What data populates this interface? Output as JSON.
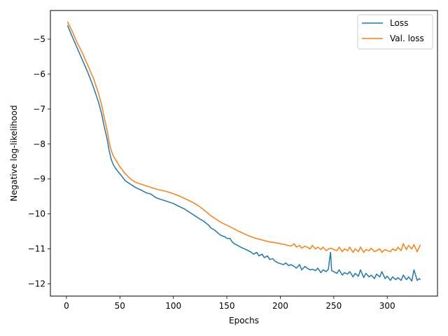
{
  "chart_data": {
    "type": "line",
    "title": "",
    "xlabel": "Epochs",
    "ylabel": "Negative log-likelihood",
    "xlim": [
      -15,
      347
    ],
    "ylim": [
      -12.35,
      -4.18
    ],
    "xticks": [
      0,
      50,
      100,
      150,
      200,
      250,
      300
    ],
    "yticks": [
      -12,
      -11,
      -10,
      -9,
      -8,
      -7,
      -6,
      -5
    ],
    "grid": false,
    "legend_position": "top-right",
    "series": [
      {
        "name": "Loss",
        "color": "#1f77b4",
        "x": [
          1,
          5,
          10,
          15,
          20,
          25,
          30,
          33,
          35,
          38,
          40,
          42,
          44,
          46,
          48,
          50,
          55,
          60,
          65,
          70,
          75,
          78,
          80,
          82,
          85,
          90,
          95,
          100,
          105,
          110,
          115,
          120,
          125,
          128,
          130,
          133,
          135,
          138,
          140,
          143,
          145,
          148,
          150,
          153,
          155,
          157,
          160,
          163,
          165,
          168,
          170,
          173,
          175,
          178,
          180,
          183,
          185,
          188,
          190,
          193,
          195,
          198,
          200,
          203,
          205,
          208,
          210,
          213,
          215,
          218,
          220,
          223,
          225,
          228,
          230,
          233,
          235,
          238,
          240,
          243,
          245,
          246,
          247,
          248,
          250,
          253,
          255,
          258,
          260,
          263,
          265,
          268,
          270,
          273,
          275,
          278,
          280,
          283,
          285,
          288,
          290,
          293,
          295,
          298,
          300,
          303,
          305,
          308,
          310,
          313,
          315,
          318,
          320,
          323,
          325,
          328,
          330,
          331
        ],
        "y": [
          -4.6,
          -4.9,
          -5.25,
          -5.6,
          -5.95,
          -6.35,
          -6.8,
          -7.15,
          -7.45,
          -7.85,
          -8.2,
          -8.45,
          -8.6,
          -8.7,
          -8.78,
          -8.85,
          -9.05,
          -9.15,
          -9.25,
          -9.32,
          -9.4,
          -9.42,
          -9.45,
          -9.5,
          -9.55,
          -9.6,
          -9.65,
          -9.7,
          -9.78,
          -9.85,
          -9.95,
          -10.05,
          -10.15,
          -10.2,
          -10.25,
          -10.32,
          -10.4,
          -10.45,
          -10.5,
          -10.58,
          -10.62,
          -10.65,
          -10.7,
          -10.7,
          -10.8,
          -10.85,
          -10.9,
          -10.95,
          -10.98,
          -11.02,
          -11.05,
          -11.1,
          -11.15,
          -11.1,
          -11.2,
          -11.15,
          -11.25,
          -11.2,
          -11.3,
          -11.28,
          -11.35,
          -11.4,
          -11.42,
          -11.45,
          -11.4,
          -11.48,
          -11.45,
          -11.5,
          -11.55,
          -11.45,
          -11.6,
          -11.5,
          -11.55,
          -11.6,
          -11.58,
          -11.62,
          -11.55,
          -11.68,
          -11.6,
          -11.65,
          -11.58,
          -11.3,
          -11.1,
          -11.62,
          -11.65,
          -11.7,
          -11.6,
          -11.75,
          -11.68,
          -11.72,
          -11.65,
          -11.8,
          -11.7,
          -11.78,
          -11.6,
          -11.82,
          -11.7,
          -11.8,
          -11.75,
          -11.85,
          -11.72,
          -11.8,
          -11.65,
          -11.85,
          -11.78,
          -11.9,
          -11.8,
          -11.88,
          -11.82,
          -11.9,
          -11.75,
          -11.88,
          -11.8,
          -11.92,
          -11.6,
          -11.9,
          -11.85,
          -11.88
        ]
      },
      {
        "name": "Val. loss",
        "color": "#ff7f0e",
        "x": [
          1,
          5,
          10,
          15,
          20,
          25,
          30,
          33,
          35,
          38,
          40,
          42,
          44,
          46,
          48,
          50,
          55,
          60,
          65,
          70,
          75,
          80,
          85,
          90,
          95,
          100,
          105,
          110,
          115,
          120,
          125,
          130,
          135,
          140,
          145,
          150,
          155,
          160,
          165,
          170,
          175,
          180,
          185,
          190,
          195,
          200,
          205,
          210,
          213,
          215,
          218,
          220,
          223,
          225,
          228,
          230,
          233,
          235,
          238,
          240,
          243,
          245,
          248,
          250,
          253,
          255,
          258,
          260,
          263,
          265,
          268,
          270,
          273,
          275,
          278,
          280,
          283,
          285,
          288,
          290,
          293,
          295,
          298,
          300,
          303,
          305,
          308,
          310,
          313,
          315,
          318,
          320,
          323,
          325,
          328,
          330,
          331
        ],
        "y": [
          -4.5,
          -4.75,
          -5.1,
          -5.4,
          -5.75,
          -6.1,
          -6.55,
          -6.9,
          -7.2,
          -7.6,
          -7.95,
          -8.2,
          -8.35,
          -8.45,
          -8.55,
          -8.65,
          -8.85,
          -9.0,
          -9.1,
          -9.15,
          -9.2,
          -9.25,
          -9.3,
          -9.33,
          -9.37,
          -9.42,
          -9.48,
          -9.55,
          -9.62,
          -9.7,
          -9.8,
          -9.92,
          -10.05,
          -10.15,
          -10.25,
          -10.32,
          -10.4,
          -10.48,
          -10.55,
          -10.62,
          -10.68,
          -10.72,
          -10.76,
          -10.8,
          -10.82,
          -10.85,
          -10.88,
          -10.92,
          -10.85,
          -10.95,
          -10.9,
          -10.98,
          -10.92,
          -10.95,
          -11.0,
          -10.9,
          -11.0,
          -10.95,
          -11.02,
          -10.95,
          -11.05,
          -11.0,
          -10.98,
          -11.02,
          -11.05,
          -10.95,
          -11.08,
          -11.0,
          -11.05,
          -10.95,
          -11.1,
          -11.0,
          -11.08,
          -10.95,
          -11.1,
          -11.02,
          -11.05,
          -10.98,
          -11.08,
          -11.05,
          -11.0,
          -11.1,
          -11.02,
          -11.05,
          -11.08,
          -11.0,
          -11.05,
          -10.95,
          -11.05,
          -10.85,
          -11.02,
          -10.9,
          -11.0,
          -10.88,
          -11.08,
          -10.95,
          -10.88
        ]
      }
    ]
  }
}
